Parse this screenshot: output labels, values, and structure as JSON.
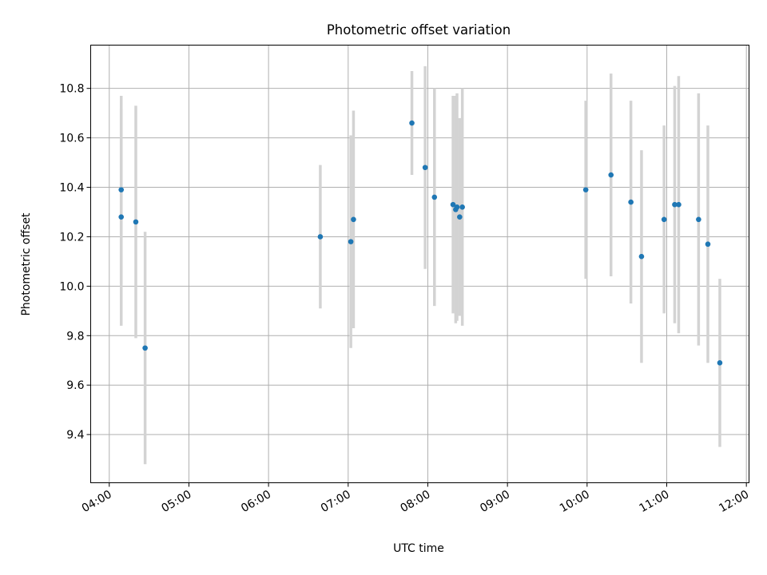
{
  "chart_data": {
    "type": "scatter",
    "title": "Photometric offset variation",
    "xlabel": "UTC time",
    "ylabel": "Photometric offset",
    "xlim": [
      "03:46",
      "12:02"
    ],
    "ylim": [
      9.205,
      10.975
    ],
    "x_ticks": [
      "04:00",
      "05:00",
      "06:00",
      "07:00",
      "08:00",
      "09:00",
      "10:00",
      "11:00",
      "12:00"
    ],
    "y_ticks": [
      "9.4",
      "9.6",
      "9.8",
      "10.0",
      "10.2",
      "10.4",
      "10.6",
      "10.8"
    ],
    "grid": true,
    "marker_color": "#1f77b4",
    "errorbar_color": "#d3d3d3",
    "points": [
      {
        "x": "04:09",
        "y": 10.39,
        "yerr": 0.38
      },
      {
        "x": "04:09",
        "y": 10.28,
        "yerr": 0.44
      },
      {
        "x": "04:20",
        "y": 10.26,
        "yerr": 0.47
      },
      {
        "x": "04:27",
        "y": 9.75,
        "yerr": 0.47
      },
      {
        "x": "06:39",
        "y": 10.2,
        "yerr": 0.29
      },
      {
        "x": "07:02",
        "y": 10.18,
        "yerr": 0.43
      },
      {
        "x": "07:04",
        "y": 10.27,
        "yerr": 0.44
      },
      {
        "x": "07:48",
        "y": 10.66,
        "yerr": 0.21
      },
      {
        "x": "07:58",
        "y": 10.48,
        "yerr": 0.41
      },
      {
        "x": "08:05",
        "y": 10.36,
        "yerr": 0.44
      },
      {
        "x": "08:19",
        "y": 10.33,
        "yerr": 0.44
      },
      {
        "x": "08:21",
        "y": 10.31,
        "yerr": 0.46
      },
      {
        "x": "08:22",
        "y": 10.32,
        "yerr": 0.46
      },
      {
        "x": "08:24",
        "y": 10.28,
        "yerr": 0.4
      },
      {
        "x": "08:26",
        "y": 10.32,
        "yerr": 0.48
      },
      {
        "x": "09:59",
        "y": 10.39,
        "yerr": 0.36
      },
      {
        "x": "10:18",
        "y": 10.45,
        "yerr": 0.41
      },
      {
        "x": "10:33",
        "y": 10.34,
        "yerr": 0.41
      },
      {
        "x": "10:41",
        "y": 10.12,
        "yerr": 0.43
      },
      {
        "x": "10:58",
        "y": 10.27,
        "yerr": 0.38
      },
      {
        "x": "11:06",
        "y": 10.33,
        "yerr": 0.48
      },
      {
        "x": "11:09",
        "y": 10.33,
        "yerr": 0.52
      },
      {
        "x": "11:24",
        "y": 10.27,
        "yerr": 0.51
      },
      {
        "x": "11:31",
        "y": 10.17,
        "yerr": 0.48
      },
      {
        "x": "11:40",
        "y": 9.69,
        "yerr": 0.34
      }
    ]
  }
}
